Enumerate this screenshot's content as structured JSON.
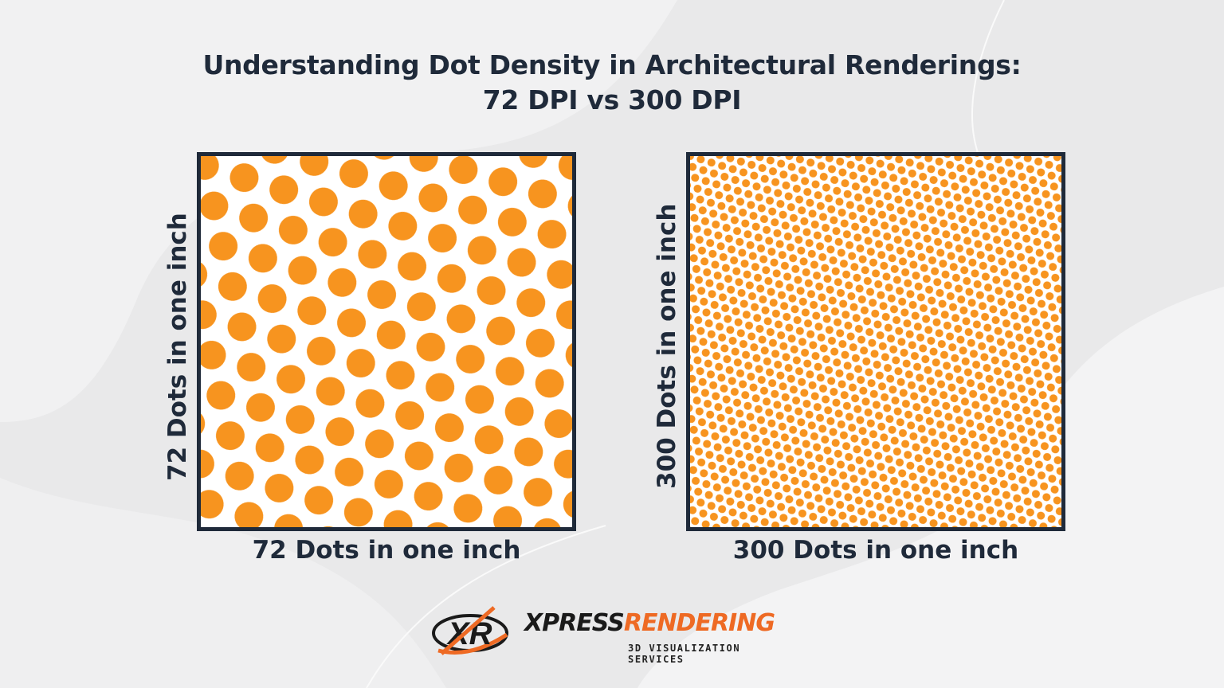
{
  "title": {
    "line1": "Understanding Dot Density in Architectural Renderings:",
    "line2": "72 DPI vs 300 DPI"
  },
  "panels": [
    {
      "dpi": 72,
      "x_label": "72 Dots in one inch",
      "y_label": "72 Dots in one inch"
    },
    {
      "dpi": 300,
      "x_label": "300 Dots in one inch",
      "y_label": "300 Dots in one inch"
    }
  ],
  "logo": {
    "brand_part1": "XPRESS",
    "brand_part2": "RENDERING",
    "tagline": "3D VISUALIZATION SERVICES",
    "mark": "XR"
  },
  "colors": {
    "dot": "#f7941f",
    "frame": "#1f2a3a",
    "title": "#1f2a3a",
    "brand_accent": "#ee6a24",
    "background": "#e9e9ea"
  }
}
